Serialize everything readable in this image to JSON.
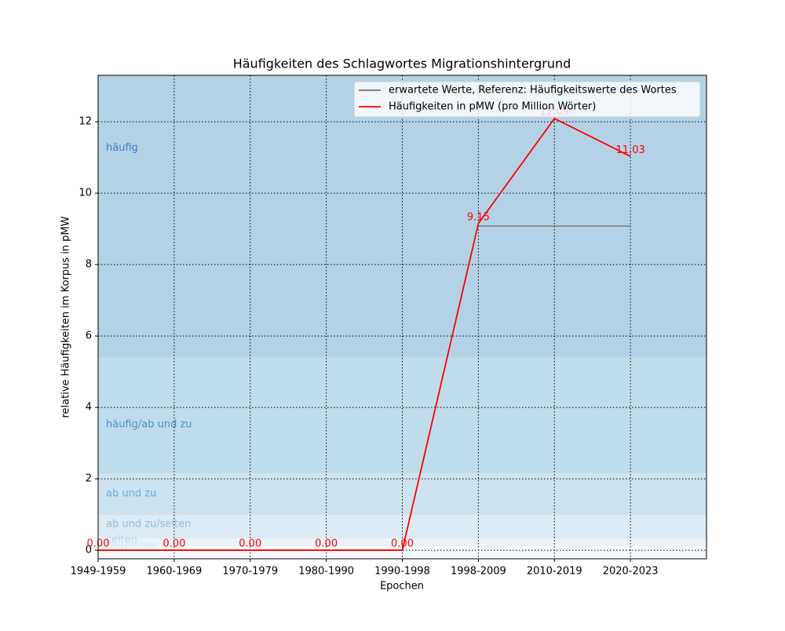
{
  "chart_data": {
    "type": "line",
    "title": "Häufigkeiten des Schlagwortes Migrationshintergrund",
    "x_label": "Epochen",
    "y_label": "relative Häufigkeiten im Korpus in pMW",
    "categories": [
      "1949-1959",
      "1960-1969",
      "1970-1979",
      "1980-1990",
      "1990-1998",
      "1998-2009",
      "2010-2019",
      "2020-2023"
    ],
    "xlim": [
      0,
      8
    ],
    "ylim": [
      -0.24,
      13.3
    ],
    "yticks": [
      0,
      2,
      4,
      6,
      8,
      10,
      12
    ],
    "grid": true,
    "legend": "upper right",
    "bands": [
      {
        "label": "häufig",
        "from": 5.41,
        "to": 13.3,
        "label_y": 11.27,
        "color": "#b4d2e6",
        "label_color": "#3a7ebf"
      },
      {
        "label": "häufig/ab und zu",
        "from": 2.15,
        "to": 5.41,
        "label_y": 3.52,
        "color": "#bfdcea",
        "label_color": "#4a8fc8"
      },
      {
        "label": "ab und zu",
        "from": 0.99,
        "to": 2.15,
        "label_y": 1.58,
        "color": "#cde3ef",
        "label_color": "#6aaad8"
      },
      {
        "label": "ab und zu/selten",
        "from": 0.33,
        "to": 0.99,
        "label_y": 0.73,
        "color": "#dcebf4",
        "label_color": "#8fbfe0"
      },
      {
        "label": "selten",
        "from": 0.1,
        "to": 0.33,
        "label_y": 0.29,
        "color": "#eaf3f8",
        "label_color": "#b7d6ec"
      },
      {
        "label": "selten/nie",
        "from": -0.24,
        "to": 0.1,
        "label_y": 0.13,
        "color": "#f5f9fc",
        "label_color": "#d8e8f4"
      }
    ],
    "series": [
      {
        "name": "erwartete Werte, Referenz: Häufigkeitswerte des Wortes",
        "color": "#707070",
        "values": [
          null,
          null,
          null,
          null,
          null,
          9.08,
          9.08,
          9.08
        ]
      },
      {
        "name": "Häufigkeiten in pMW (pro Million Wörter)",
        "color": "#ff0000",
        "values": [
          0,
          0,
          0,
          0,
          0,
          9.15,
          12.09,
          11.03
        ],
        "value_labels": [
          "0.00",
          "0.00",
          "0.00",
          "0.00",
          "0.00",
          "9.15",
          "12.09",
          "11.03"
        ]
      }
    ]
  }
}
